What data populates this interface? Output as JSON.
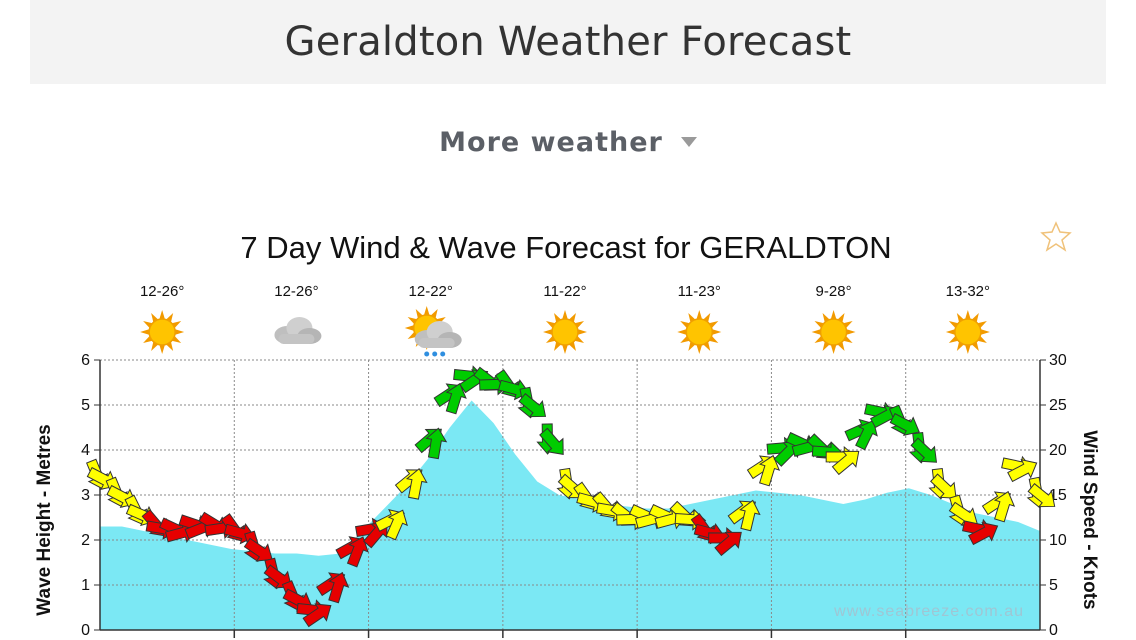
{
  "page": {
    "title": "Geraldton Weather Forecast"
  },
  "menu": {
    "more_weather_label": "More weather"
  },
  "chart_data": {
    "type": "area",
    "title": "7 Day Wind & Wave Forecast for GERALDTON",
    "ylabel_left": "Wave Height - Metres",
    "ylabel_right": "Wind Speed - Knots",
    "left_axis": {
      "range": [
        0,
        6
      ],
      "ticks": [
        "0",
        "1",
        "2",
        "3",
        "4",
        "5",
        "6"
      ]
    },
    "right_axis": {
      "range": [
        0,
        30
      ],
      "ticks": [
        "0",
        "5",
        "10",
        "15",
        "20",
        "25",
        "30"
      ]
    },
    "days": 7,
    "grid": true,
    "watermark": "www.seabreeze.com.au",
    "daily": [
      {
        "temp": "12-26°",
        "icon": "sun-icon"
      },
      {
        "temp": "12-26°",
        "icon": "cloud-icon"
      },
      {
        "temp": "12-22°",
        "icon": "sun-rain-icon"
      },
      {
        "temp": "11-22°",
        "icon": "sun-icon"
      },
      {
        "temp": "11-23°",
        "icon": "sun-icon"
      },
      {
        "temp": "9-28°",
        "icon": "sun-icon"
      },
      {
        "temp": "13-32°",
        "icon": "sun-icon"
      }
    ],
    "wave_height_m": [
      2.3,
      2.3,
      2.2,
      2.1,
      2.0,
      1.9,
      1.8,
      1.75,
      1.7,
      1.7,
      1.65,
      1.7,
      2.2,
      2.7,
      3.2,
      3.8,
      4.5,
      5.1,
      4.6,
      3.9,
      3.3,
      3.0,
      2.9,
      2.8,
      2.75,
      2.7,
      2.7,
      2.8,
      2.9,
      3.0,
      3.1,
      3.05,
      3.0,
      2.9,
      2.8,
      2.9,
      3.05,
      3.15,
      3.0,
      2.8,
      2.6,
      2.5,
      2.4,
      2.2
    ],
    "wind_knots": [
      17,
      15,
      13,
      11.5,
      11,
      11.5,
      11.5,
      11,
      9,
      6,
      3.5,
      2,
      5,
      9,
      11,
      12,
      16.5,
      21,
      26,
      28,
      27.5,
      27,
      25,
      21,
      16,
      14.5,
      13.5,
      12.5,
      12.5,
      12.5,
      12.5,
      11,
      10,
      13,
      18,
      20,
      20.5,
      20,
      19,
      22,
      24,
      23,
      20,
      16,
      13,
      11,
      14,
      18,
      15
    ],
    "wind_colors": {
      "light": "#e60000",
      "moderate": "#ffff00",
      "strong": "#00cc00"
    },
    "wave_fill": "#7be8f4"
  }
}
